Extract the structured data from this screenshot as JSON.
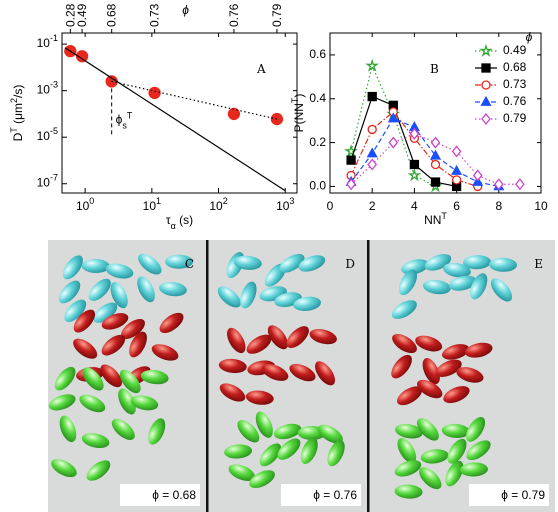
{
  "chart_data": [
    {
      "type": "scatter",
      "panel": "A",
      "xlabel": [
        "τ",
        "α",
        " (s)"
      ],
      "ylabel": [
        "D",
        "T",
        " (μm",
        "2",
        "/s)"
      ],
      "xscale": "log",
      "yscale": "log",
      "xlim": [
        0.45,
        1500
      ],
      "ylim": [
        4e-08,
        0.3
      ],
      "xticks": [
        {
          "value": 1,
          "label": "10",
          "sup": "0"
        },
        {
          "value": 10,
          "label": "10",
          "sup": "1"
        },
        {
          "value": 100,
          "label": "10",
          "sup": "2"
        },
        {
          "value": 1000,
          "label": "10",
          "sup": "3"
        }
      ],
      "yticks": [
        {
          "value": 0.1,
          "label": "10",
          "sup": "-1"
        },
        {
          "value": 0.001,
          "label": "10",
          "sup": "-3"
        },
        {
          "value": 1e-05,
          "label": "10",
          "sup": "-5"
        },
        {
          "value": 1e-07,
          "label": "10",
          "sup": "-7"
        }
      ],
      "x2label": "ϕ",
      "x2ticks": [
        0.28,
        0.49,
        0.68,
        0.73,
        0.76,
        0.79
      ],
      "annotation": [
        "ϕ",
        "s",
        "T"
      ],
      "series": [
        {
          "color": "#e8281c",
          "marker": "circle",
          "x": [
            0.6,
            0.9,
            2.5,
            11,
            170,
            750
          ],
          "values": [
            0.05,
            0.03,
            0.0025,
            0.0008,
            0.0001,
            6e-05
          ]
        },
        {
          "color": "#000000",
          "line": "solid",
          "x": [
            0.5,
            1000
          ],
          "values": [
            0.07,
            5e-08
          ]
        },
        {
          "color": "#000000",
          "line": "dotted",
          "x": [
            2.5,
            750
          ],
          "values": [
            0.0025,
            6e-05
          ]
        }
      ]
    },
    {
      "type": "line",
      "panel": "B",
      "xlabel": [
        "NN",
        "T"
      ],
      "ylabel": [
        "P(NN",
        "T",
        ")"
      ],
      "xlim": [
        0,
        10
      ],
      "ylim": [
        -0.03,
        0.7
      ],
      "xticks": [
        0,
        2,
        4,
        6,
        8,
        10
      ],
      "yticks": [
        {
          "value": 0,
          "label": "0.0"
        },
        0.2,
        0.4,
        0.6
      ],
      "legend_title": "ϕ",
      "legend": "upper right",
      "series": [
        {
          "name": "0.49",
          "color": "#2fa82f",
          "marker": "star",
          "filled": false,
          "line": "dotted",
          "x": [
            1,
            2,
            3,
            4,
            5
          ],
          "values": [
            0.16,
            0.55,
            0.33,
            0.05,
            0.0
          ]
        },
        {
          "name": "0.68",
          "color": "#000000",
          "marker": "square",
          "filled": true,
          "line": "solid",
          "x": [
            1,
            2,
            3,
            4,
            5,
            6
          ],
          "values": [
            0.12,
            0.41,
            0.37,
            0.1,
            0.02,
            0.0
          ]
        },
        {
          "name": "0.73",
          "color": "#e8281c",
          "marker": "circle",
          "filled": false,
          "line": "dashdot",
          "x": [
            1,
            2,
            3,
            4,
            5,
            6,
            7
          ],
          "values": [
            0.05,
            0.26,
            0.34,
            0.22,
            0.1,
            0.03,
            0.0
          ]
        },
        {
          "name": "0.76",
          "color": "#1a4fff",
          "marker": "triangle",
          "filled": true,
          "line": "dashed",
          "x": [
            1,
            2,
            3,
            4,
            5,
            6,
            7,
            8
          ],
          "values": [
            0.02,
            0.15,
            0.31,
            0.27,
            0.14,
            0.07,
            0.02,
            0.0
          ]
        },
        {
          "name": "0.79",
          "color": "#cc44cc",
          "marker": "diamond",
          "filled": false,
          "line": "dotted",
          "x": [
            1,
            2,
            3,
            4,
            5,
            6,
            7,
            8,
            9
          ],
          "values": [
            0.01,
            0.1,
            0.2,
            0.24,
            0.2,
            0.16,
            0.05,
            0.01,
            0.01
          ]
        }
      ]
    }
  ],
  "panels": [
    {
      "label": "C",
      "phi_label": "ϕ = 0.68"
    },
    {
      "label": "D",
      "phi_label": "ϕ = 0.76"
    },
    {
      "label": "E",
      "phi_label": "ϕ = 0.79"
    }
  ]
}
